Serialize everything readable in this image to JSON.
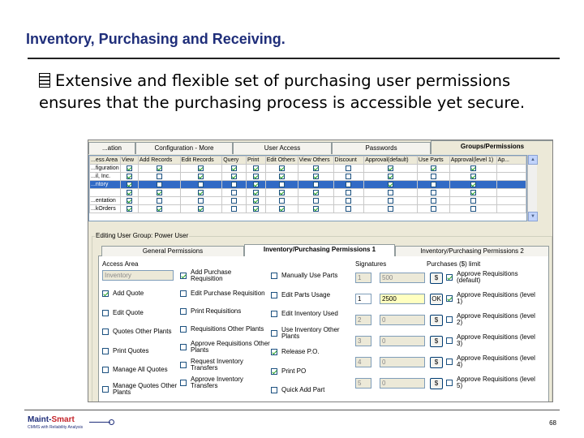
{
  "slide": {
    "title": "Inventory, Purchasing and Receiving.",
    "bullet": "Extensive and flexible set of purchasing user permissions ensures that the purchasing process is accessible yet secure.",
    "page_number": "68",
    "logo_text_a": "Maint",
    "logo_text_b": "Smart",
    "logo_sub": "CMMS with Reliability Analysis"
  },
  "window": {
    "tabs": [
      "...ation",
      "Configuration - More",
      "User Access",
      "Passwords",
      "Groups/Permissions"
    ],
    "active_tab": 4,
    "grid": {
      "columns": [
        "...ess Area",
        "View",
        "Add Records",
        "Edit Records",
        "Query",
        "Print",
        "Edit Others",
        "View Others",
        "Discount",
        "Approval(default)",
        "Use Parts",
        "Approval(level 1)",
        "Ap..."
      ],
      "rows": [
        {
          "label": "...figuration",
          "checks": [
            1,
            1,
            1,
            1,
            1,
            1,
            1,
            0,
            1,
            1,
            1
          ]
        },
        {
          "label": "...il, Inc.",
          "checks": [
            1,
            0,
            1,
            1,
            1,
            1,
            1,
            0,
            1,
            0,
            1
          ]
        },
        {
          "label": "...ntory",
          "checks": [
            1,
            0,
            0,
            0,
            1,
            0,
            0,
            0,
            1,
            0,
            1
          ],
          "selected": true
        },
        {
          "label": "",
          "checks": [
            1,
            1,
            1,
            0,
            1,
            1,
            1,
            0,
            0,
            0,
            1
          ]
        },
        {
          "label": "...entation",
          "checks": [
            1,
            0,
            0,
            0,
            1,
            0,
            0,
            0,
            0,
            0,
            0
          ]
        },
        {
          "label": "...kOrders",
          "checks": [
            1,
            1,
            1,
            0,
            1,
            1,
            1,
            0,
            0,
            0,
            0
          ]
        }
      ]
    },
    "group_label": "Editing User Group: Power User",
    "subtabs": [
      "General Permissions",
      "Inventory/Purchasing Permissions 1",
      "Inventory/Purchasing Permissions 2"
    ],
    "active_subtab": 1,
    "panel": {
      "access_area_label": "Access Area",
      "access_area_value": "Inventory",
      "signatures_label": "Signatures",
      "purchase_limit_label": "Purchases ($) limit",
      "col1": [
        {
          "label": "Add Quote",
          "checked": true
        },
        {
          "label": "Edit Quote",
          "checked": false
        },
        {
          "label": "Quotes Other Plants",
          "checked": false
        },
        {
          "label": "Print Quotes",
          "checked": false
        },
        {
          "label": "Manage All Quotes",
          "checked": false
        },
        {
          "label": "Manage Quotes Other Plants",
          "checked": false
        }
      ],
      "col2": [
        {
          "label": "Add Purchase Requisition",
          "checked": true
        },
        {
          "label": "Edit Purchase Requisition",
          "checked": false
        },
        {
          "label": "Print Requisitions",
          "checked": false
        },
        {
          "label": "Requisitions Other Plants",
          "checked": false
        },
        {
          "label": "Approve Requisitions Other Plants",
          "checked": false
        },
        {
          "label": "Request Inventory Transfers",
          "checked": false
        },
        {
          "label": "Approve Inventory Transfers",
          "checked": false
        }
      ],
      "col3": [
        {
          "label": "Manually Use Parts",
          "checked": false
        },
        {
          "label": "Edit Parts Usage",
          "checked": false
        },
        {
          "label": "Edit Inventory Used",
          "checked": false
        },
        {
          "label": "Use Inventory Other Plants",
          "checked": false
        },
        {
          "label": "Release P.O.",
          "checked": true
        },
        {
          "label": "Print PO",
          "checked": true
        },
        {
          "label": "Quick Add Part",
          "checked": false
        }
      ],
      "signature_values": [
        "1",
        "1",
        "2",
        "3",
        "4",
        "5"
      ],
      "limit_values": [
        "500",
        "2500",
        "0",
        "0",
        "0",
        "0"
      ],
      "dollar_label": "$",
      "ok_label": "OK",
      "approve": [
        {
          "label": "Approve Requisitions (default)",
          "checked": true
        },
        {
          "label": "Approve Requisitions (level 1)",
          "checked": true
        },
        {
          "label": "Approve Requisitions (level 2)",
          "checked": false
        },
        {
          "label": "Approve Requisitions (level 3)",
          "checked": false
        },
        {
          "label": "Approve Requisitions (level 4)",
          "checked": false
        },
        {
          "label": "Approve Requisitions (level 5)",
          "checked": false
        }
      ]
    }
  }
}
